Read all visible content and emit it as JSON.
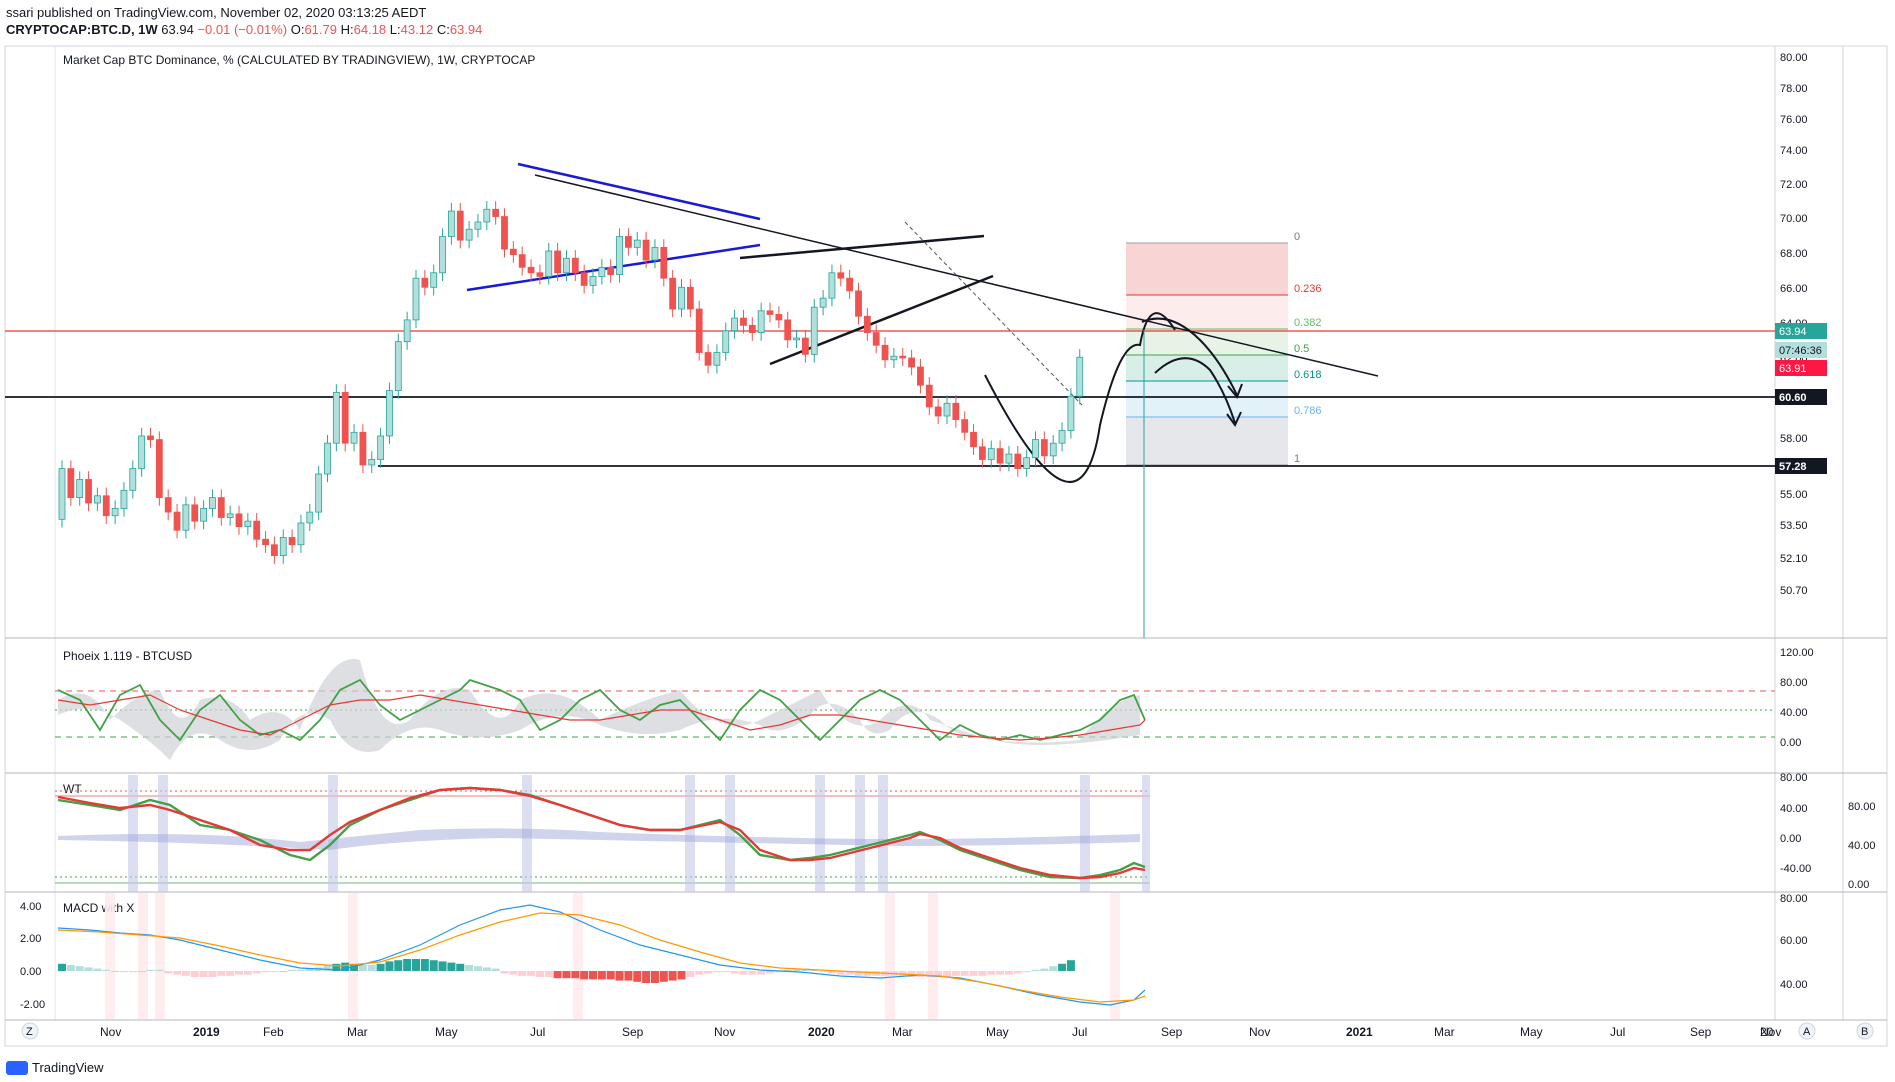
{
  "header": {
    "published": "ssari published on TradingView.com, November 02, 2020 03:13:25 AEDT",
    "symbol": "CRYPTOCAP:BTC.D, 1W",
    "last": "63.94",
    "change": "−0.01 (−0.01%)",
    "o_label": "O:",
    "o_val": "61.79",
    "h_label": "H:",
    "h_val": "64.18",
    "l_label": "L:",
    "l_val": "43.12",
    "c_label": "C:",
    "c_val": "63.94"
  },
  "main_pane": {
    "title": "Market Cap BTC Dominance, % (CALCULATED BY TRADINGVIEW), 1W, CRYPTOCAP",
    "price_axis": [
      "80.00",
      "78.00",
      "76.00",
      "74.00",
      "72.00",
      "70.00",
      "68.00",
      "66.00",
      "64.00",
      "62.00",
      "60.00",
      "58.00",
      "56.50",
      "55.00",
      "53.50",
      "52.10",
      "50.70"
    ],
    "labels": {
      "last_price": "63.94",
      "countdown": "07:46:36",
      "prev": "63.91",
      "level_top": "60.60",
      "level_low": "57.28"
    },
    "fib": [
      "0",
      "0.236",
      "0.382",
      "0.5",
      "0.618",
      "0.786",
      "1"
    ]
  },
  "phoeix_pane": {
    "title": "Phoeix 1.119 - BTCUSD",
    "axis": [
      "120.00",
      "80.00",
      "40.00",
      "0.00"
    ]
  },
  "wt_pane": {
    "title": "WT",
    "axis": [
      "80.00",
      "40.00",
      "0.00",
      "-40.00"
    ],
    "axis2": [
      "80.00",
      "40.00",
      "0.00"
    ]
  },
  "macd_pane": {
    "title": "MACD with X",
    "axis_left": [
      "4.00",
      "2.00",
      "0.00",
      "-2.00"
    ],
    "axis_right": [
      "80.00",
      "60.00",
      "40.00"
    ]
  },
  "time_axis": {
    "labels": [
      "Nov",
      "2019",
      "Feb",
      "Mar",
      "May",
      "Jul",
      "Sep",
      "Nov",
      "2020",
      "Mar",
      "May",
      "Jul",
      "Sep",
      "Nov",
      "2021",
      "Mar",
      "May",
      "Jul",
      "Sep",
      "Nov",
      "20"
    ],
    "buttons": [
      "Z",
      "A",
      "B"
    ]
  },
  "footer": {
    "brand": "TradingView"
  },
  "colors": {
    "up": "#26a69a",
    "up_fill": "#b2dfdb",
    "down": "#ef5350",
    "accent": "#2962ff",
    "line_red": "#e53935"
  },
  "chart_data": {
    "type": "candlestick",
    "title": "Market Cap BTC Dominance, % (CALCULATED BY TRADINGVIEW), 1W, CRYPTOCAP",
    "ylim": [
      50,
      80.5
    ],
    "x_start": "2018-10-08",
    "x_step_weeks": 1,
    "candles": [
      [
        55.0,
        57.8
      ],
      [
        57.8,
        56.2
      ],
      [
        56.2,
        57.2
      ],
      [
        57.2,
        55.9
      ],
      [
        55.9,
        56.3
      ],
      [
        56.3,
        55.2
      ],
      [
        55.2,
        55.6
      ],
      [
        55.6,
        56.6
      ],
      [
        56.6,
        57.8
      ],
      [
        57.8,
        59.6
      ],
      [
        59.6,
        59.4
      ],
      [
        59.4,
        56.2
      ],
      [
        56.2,
        55.4
      ],
      [
        55.4,
        54.4
      ],
      [
        54.4,
        55.8
      ],
      [
        55.8,
        54.9
      ],
      [
        54.9,
        55.6
      ],
      [
        55.6,
        56.2
      ],
      [
        56.2,
        55.1
      ],
      [
        55.1,
        55.3
      ],
      [
        55.3,
        54.6
      ],
      [
        54.6,
        54.9
      ],
      [
        54.9,
        53.9
      ],
      [
        53.9,
        53.6
      ],
      [
        53.6,
        53.0
      ],
      [
        53.0,
        54.0
      ],
      [
        54.0,
        53.6
      ],
      [
        53.6,
        54.8
      ],
      [
        54.8,
        55.4
      ],
      [
        55.4,
        57.5
      ],
      [
        57.5,
        59.2
      ],
      [
        59.2,
        62.0
      ],
      [
        62.0,
        59.2
      ],
      [
        59.2,
        59.8
      ],
      [
        59.8,
        58.0
      ],
      [
        58.0,
        58.3
      ],
      [
        58.3,
        59.6
      ],
      [
        59.6,
        62.1
      ],
      [
        62.1,
        64.8
      ],
      [
        64.8,
        66.0
      ],
      [
        66.0,
        68.3
      ],
      [
        68.3,
        67.8
      ],
      [
        67.8,
        68.6
      ],
      [
        68.6,
        70.6
      ],
      [
        70.6,
        72.0
      ],
      [
        72.0,
        70.4
      ],
      [
        70.4,
        71.0
      ],
      [
        71.0,
        71.4
      ],
      [
        71.4,
        72.1
      ],
      [
        72.1,
        71.7
      ],
      [
        71.7,
        69.9
      ],
      [
        69.9,
        69.6
      ],
      [
        69.6,
        68.9
      ],
      [
        68.9,
        68.6
      ],
      [
        68.6,
        68.4
      ],
      [
        68.4,
        69.8
      ],
      [
        69.8,
        68.6
      ],
      [
        68.6,
        69.4
      ],
      [
        69.4,
        68.6
      ],
      [
        68.6,
        67.9
      ],
      [
        67.9,
        68.4
      ],
      [
        68.4,
        68.9
      ],
      [
        68.9,
        68.5
      ],
      [
        68.5,
        70.6
      ],
      [
        70.6,
        70.0
      ],
      [
        70.0,
        70.4
      ],
      [
        70.4,
        69.3
      ],
      [
        69.3,
        70.0
      ],
      [
        70.0,
        68.3
      ],
      [
        68.3,
        66.6
      ],
      [
        66.6,
        67.8
      ],
      [
        67.8,
        66.6
      ],
      [
        66.6,
        64.2
      ],
      [
        64.2,
        63.5
      ],
      [
        63.5,
        64.2
      ],
      [
        64.2,
        65.4
      ],
      [
        65.4,
        66.1
      ],
      [
        66.1,
        65.7
      ],
      [
        65.7,
        65.3
      ],
      [
        65.3,
        66.5
      ],
      [
        66.5,
        66.3
      ],
      [
        66.3,
        66.0
      ],
      [
        66.0,
        64.9
      ],
      [
        64.9,
        65.0
      ],
      [
        65.0,
        64.1
      ],
      [
        64.1,
        66.7
      ],
      [
        66.7,
        67.2
      ],
      [
        67.2,
        68.6
      ],
      [
        68.6,
        68.3
      ],
      [
        68.3,
        67.6
      ],
      [
        67.6,
        66.2
      ],
      [
        66.2,
        65.3
      ],
      [
        65.3,
        64.6
      ],
      [
        64.6,
        63.8
      ],
      [
        63.8,
        64.0
      ],
      [
        64.0,
        63.9
      ],
      [
        63.9,
        63.4
      ],
      [
        63.4,
        62.4
      ],
      [
        62.4,
        61.2
      ],
      [
        61.2,
        60.7
      ],
      [
        60.7,
        61.4
      ],
      [
        61.4,
        60.5
      ],
      [
        60.5,
        59.8
      ],
      [
        59.8,
        59.0
      ],
      [
        59.0,
        58.3
      ],
      [
        58.3,
        58.9
      ],
      [
        58.9,
        58.1
      ],
      [
        58.1,
        58.6
      ],
      [
        58.6,
        57.8
      ],
      [
        57.8,
        58.4
      ],
      [
        58.4,
        59.4
      ],
      [
        59.4,
        58.5
      ],
      [
        58.5,
        59.2
      ],
      [
        59.2,
        59.9
      ],
      [
        59.9,
        61.79
      ],
      [
        61.79,
        63.94
      ]
    ],
    "levels": [
      63.94,
      60.6,
      57.28
    ]
  }
}
